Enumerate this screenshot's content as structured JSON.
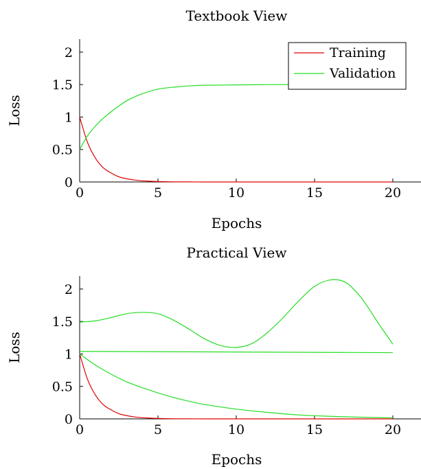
{
  "chart_data": [
    {
      "type": "line",
      "title": "Textbook View",
      "xlabel": "Epochs",
      "ylabel": "Loss",
      "xlim": [
        0,
        21.8
      ],
      "ylim": [
        0,
        2.2
      ],
      "xticks": [
        0,
        5,
        10,
        15,
        20
      ],
      "yticks": [
        0,
        0.5,
        1,
        1.5,
        2
      ],
      "xtick_labels": [
        "0",
        "5",
        "10",
        "15",
        "20"
      ],
      "ytick_labels": [
        "0",
        "0.5",
        "1",
        "1.5",
        "2"
      ],
      "grid": false,
      "legend": "top-right",
      "series": [
        {
          "name": "Training",
          "color": "#e00000",
          "x": [
            0,
            0.5,
            1,
            1.5,
            2,
            2.5,
            3,
            3.5,
            4,
            5,
            6,
            7,
            8,
            10,
            12,
            15,
            18,
            20
          ],
          "y": [
            1.0,
            0.61,
            0.37,
            0.22,
            0.14,
            0.08,
            0.05,
            0.03,
            0.018,
            0.007,
            0.002,
            0.001,
            0,
            0,
            0,
            0,
            0,
            0
          ]
        },
        {
          "name": "Validation",
          "color": "#22dd22",
          "x": [
            0,
            0.5,
            1,
            1.5,
            2,
            2.5,
            3,
            3.5,
            4,
            5,
            6,
            7,
            8,
            10,
            12,
            15,
            18,
            20
          ],
          "y": [
            0.5,
            0.71,
            0.86,
            0.98,
            1.08,
            1.17,
            1.25,
            1.31,
            1.36,
            1.43,
            1.46,
            1.48,
            1.49,
            1.495,
            1.5,
            1.5,
            1.5,
            1.5
          ]
        }
      ]
    },
    {
      "type": "line",
      "title": "Practical View",
      "xlabel": "Epochs",
      "ylabel": "Loss",
      "xlim": [
        0,
        21.8
      ],
      "ylim": [
        0,
        2.2
      ],
      "xticks": [
        0,
        5,
        10,
        15,
        20
      ],
      "yticks": [
        0,
        0.5,
        1,
        1.5,
        2
      ],
      "xtick_labels": [
        "0",
        "5",
        "10",
        "15",
        "20"
      ],
      "ytick_labels": [
        "0",
        "0.5",
        "1",
        "1.5",
        "2"
      ],
      "grid": false,
      "legend": "none",
      "series": [
        {
          "color": "#e00000",
          "x": [
            0,
            0.5,
            1,
            1.5,
            2,
            2.5,
            3,
            3.5,
            4,
            5,
            6,
            7,
            8,
            10,
            12,
            15,
            18,
            20
          ],
          "y": [
            1.0,
            0.61,
            0.37,
            0.22,
            0.14,
            0.08,
            0.05,
            0.03,
            0.018,
            0.007,
            0.002,
            0.001,
            0,
            0,
            0,
            0,
            0,
            0
          ]
        },
        {
          "color": "#22dd22",
          "x": [
            0,
            1,
            2,
            3,
            4,
            5,
            6,
            7,
            8,
            9,
            10,
            11,
            12,
            13,
            14,
            15,
            16,
            17,
            18,
            19,
            20
          ],
          "y": [
            1.49,
            1.51,
            1.56,
            1.62,
            1.64,
            1.62,
            1.52,
            1.38,
            1.23,
            1.13,
            1.1,
            1.16,
            1.33,
            1.56,
            1.82,
            2.04,
            2.14,
            2.1,
            1.86,
            1.5,
            1.15
          ]
        },
        {
          "color": "#22dd22",
          "x": [
            0,
            5,
            10,
            15,
            20
          ],
          "y": [
            1.04,
            1.035,
            1.03,
            1.025,
            1.02
          ]
        },
        {
          "color": "#22dd22",
          "x": [
            0,
            1,
            2,
            3,
            4,
            5,
            6,
            7,
            8,
            10,
            12,
            14,
            16,
            18,
            20
          ],
          "y": [
            1.0,
            0.83,
            0.69,
            0.57,
            0.48,
            0.4,
            0.33,
            0.27,
            0.22,
            0.15,
            0.1,
            0.06,
            0.04,
            0.025,
            0.015
          ]
        }
      ]
    }
  ]
}
